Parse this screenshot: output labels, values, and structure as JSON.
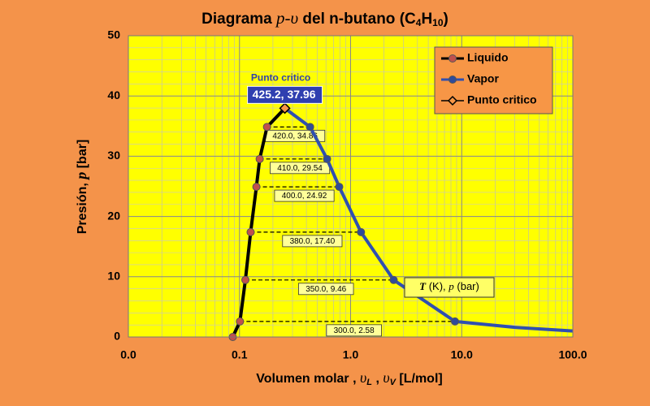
{
  "chart_data": {
    "type": "line",
    "title": [
      "Diagrama ",
      "p-υ",
      " del n-butano (C",
      "4",
      "H",
      "10",
      ")"
    ],
    "xlabel": [
      "Volumen molar , ",
      "υ",
      "L",
      " , ",
      "υ",
      "V",
      " [L/mol]"
    ],
    "ylabel": [
      "Presión, ",
      "p",
      "  [bar]"
    ],
    "xlog": true,
    "xlim": [
      0.01,
      100
    ],
    "xticks": [
      {
        "value": 0.01,
        "label": "0.0"
      },
      {
        "value": 0.1,
        "label": "0.1"
      },
      {
        "value": 1,
        "label": "1.0"
      },
      {
        "value": 10,
        "label": "10.0"
      },
      {
        "value": 100,
        "label": "100.0"
      }
    ],
    "ylim": [
      0,
      50
    ],
    "yticks": [
      0,
      10,
      20,
      30,
      40,
      50
    ],
    "grid": true,
    "legend": "upper right",
    "series": [
      {
        "name": "Liquido",
        "color": "#000000",
        "marker_color": "#c0504d",
        "x": [
          0.087,
          0.101,
          0.113,
          0.126,
          0.142,
          0.152,
          0.177,
          0.256
        ],
        "values": [
          0,
          2.58,
          9.46,
          17.4,
          24.92,
          29.54,
          34.86,
          37.96
        ],
        "point_labels": [
          null,
          "300.0, 2.58",
          "350.0, 9.46",
          "380.0, 17.40",
          "400.0, 24.92",
          "410.0, 29.54",
          "420.0, 34.86",
          null
        ]
      },
      {
        "name": "Vapor",
        "color": "#2f4fb0",
        "marker_color": "#2f4b9a",
        "x": [
          0.256,
          0.432,
          0.614,
          0.79,
          1.24,
          2.44,
          8.7,
          30,
          100
        ],
        "values": [
          37.96,
          34.86,
          29.54,
          24.92,
          17.4,
          9.46,
          2.58,
          1.6,
          1.0
        ]
      },
      {
        "name": "Punto critico",
        "color": "#f79646",
        "x": [
          0.256
        ],
        "values": [
          37.96
        ],
        "point_title": "Punto critico",
        "point_label": "425.2, 37.96"
      }
    ],
    "annotation": [
      "T",
      " (K), ",
      "p",
      " (bar)"
    ]
  }
}
